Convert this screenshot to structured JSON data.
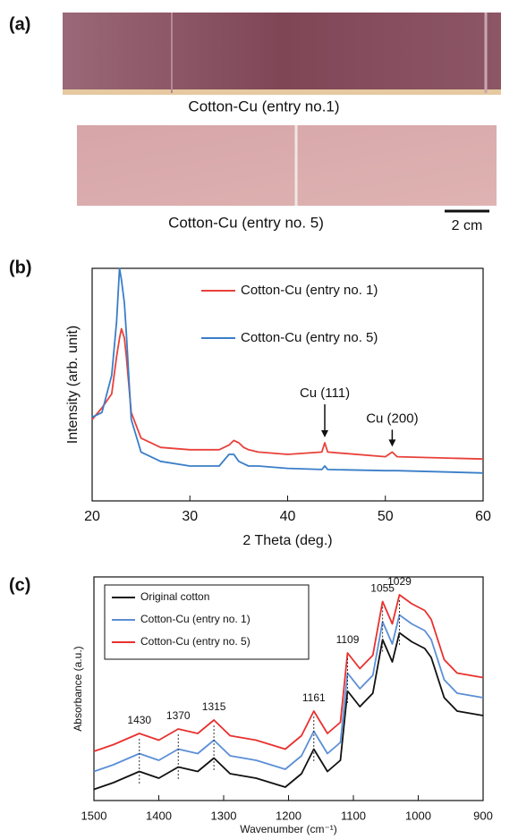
{
  "figure": {
    "panel_labels": [
      "(a)",
      "(b)",
      "(c)"
    ],
    "photo_captions": [
      "Cotton-Cu (entry no.1)",
      "Cotton-Cu (entry no. 5)"
    ],
    "scale_bar_label": "2 cm"
  },
  "chart_data": [
    {
      "type": "line",
      "xlabel": "2 Theta (deg.)",
      "ylabel": "Intensity (arb. unit)",
      "x": [
        20,
        21,
        22,
        22.5,
        22.8,
        23,
        23.3,
        23.5,
        24,
        25,
        27,
        30,
        33,
        34,
        34.5,
        35,
        35.5,
        36,
        37,
        40,
        43.5,
        43.8,
        44.1,
        50,
        50.7,
        51.2,
        60
      ],
      "series": [
        {
          "name": "Cotton-Cu (entry no. 1)",
          "color": "#e8413a",
          "values": [
            35,
            40,
            46,
            62,
            70,
            74,
            70,
            62,
            38,
            27,
            23,
            22,
            22,
            24,
            26,
            25,
            23,
            22,
            21,
            20,
            21,
            25,
            21,
            19,
            21,
            19,
            18
          ]
        },
        {
          "name": "Cotton-Cu (entry no. 5)",
          "color": "#3a7ec8",
          "values": [
            36,
            38,
            54,
            77,
            100,
            95,
            85,
            72,
            35,
            21,
            17,
            15,
            15,
            20,
            20,
            17,
            16,
            15,
            15,
            14,
            13.5,
            15,
            13.5,
            13,
            13,
            13,
            12
          ]
        }
      ],
      "xlim": [
        20,
        60
      ],
      "xticks": [
        20,
        30,
        40,
        50,
        60
      ],
      "ylim": [
        0,
        100
      ],
      "legend": "upper right",
      "annotations": [
        {
          "text": "Cu (111)",
          "x": 43.8
        },
        {
          "text": "Cu (200)",
          "x": 50.7
        }
      ]
    },
    {
      "type": "line",
      "xlabel": "Wavenumber (cm⁻¹)",
      "ylabel": "Absorbance (a.u.)",
      "x": [
        1500,
        1470,
        1430,
        1400,
        1370,
        1340,
        1315,
        1290,
        1250,
        1205,
        1180,
        1161,
        1140,
        1120,
        1109,
        1090,
        1070,
        1055,
        1040,
        1029,
        1010,
        990,
        980,
        960,
        940,
        900
      ],
      "series": [
        {
          "name": "Original cotton",
          "color": "#111111",
          "values": [
            5,
            8,
            13,
            10,
            15,
            13,
            19,
            12,
            10,
            6,
            12,
            23,
            13,
            18,
            49,
            42,
            48,
            72,
            62,
            75,
            71,
            68,
            64,
            46,
            40,
            38
          ]
        },
        {
          "name": "Cotton-Cu (entry no. 1)",
          "color": "#5b8fd6",
          "values": [
            13,
            16,
            21,
            18,
            23,
            21,
            27,
            20,
            18,
            14,
            20,
            31,
            21,
            26,
            57,
            50,
            56,
            80,
            70,
            83,
            79,
            76,
            72,
            54,
            48,
            46
          ]
        },
        {
          "name": "Cotton-Cu (entry no. 5)",
          "color": "#e8312e",
          "values": [
            22,
            25,
            30,
            27,
            32,
            30,
            36,
            29,
            27,
            23,
            29,
            40,
            30,
            35,
            66,
            59,
            65,
            89,
            79,
            92,
            88,
            85,
            81,
            63,
            57,
            55
          ]
        }
      ],
      "xlim": [
        1500,
        900
      ],
      "xticks": [
        1500,
        1400,
        1300,
        1200,
        1100,
        1000,
        900
      ],
      "ylim": [
        0,
        100
      ],
      "legend": "upper left",
      "peak_labels": [
        1430,
        1370,
        1315,
        1161,
        1109,
        1055,
        1029
      ]
    }
  ]
}
